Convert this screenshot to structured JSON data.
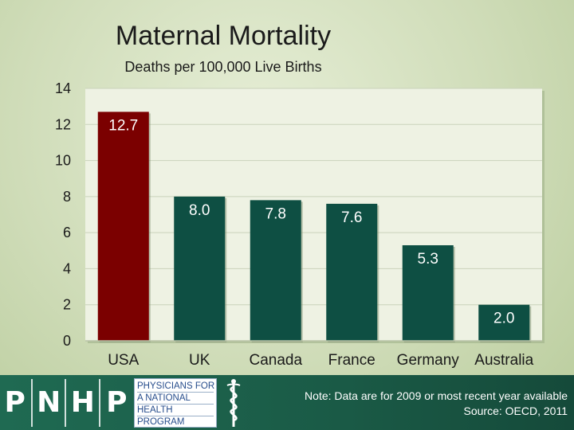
{
  "slide": {
    "title": "Maternal Mortality",
    "subtitle": "Deaths per 100,000 Live Births"
  },
  "chart_data": {
    "type": "bar",
    "title": "Maternal Mortality",
    "subtitle": "Deaths per 100,000 Live Births",
    "categories": [
      "USA",
      "UK",
      "Canada",
      "France",
      "Germany",
      "Australia"
    ],
    "values": [
      12.7,
      8.0,
      7.8,
      7.6,
      5.3,
      2.0
    ],
    "value_labels": [
      "12.7",
      "8.0",
      "7.8",
      "7.6",
      "5.3",
      "2.0"
    ],
    "ylim": [
      0,
      14
    ],
    "yticks": [
      0,
      2,
      4,
      6,
      8,
      10,
      12,
      14
    ],
    "xlabel": "",
    "ylabel": "",
    "grid": true,
    "colors": {
      "highlight": "#7b0000",
      "bar": "#0e4f43",
      "plot_bg": "#eef2e3",
      "grid": "#c9d2bb"
    }
  },
  "footer": {
    "logo_letters": [
      "P",
      "N",
      "H",
      "P"
    ],
    "org_lines": [
      "PHYSICIANS FOR",
      "A NATIONAL",
      "HEALTH",
      "PROGRAM"
    ],
    "note_line1": "Note: Data are for 2009 or most recent year available",
    "note_line2": "Source: OECD, 2011"
  }
}
